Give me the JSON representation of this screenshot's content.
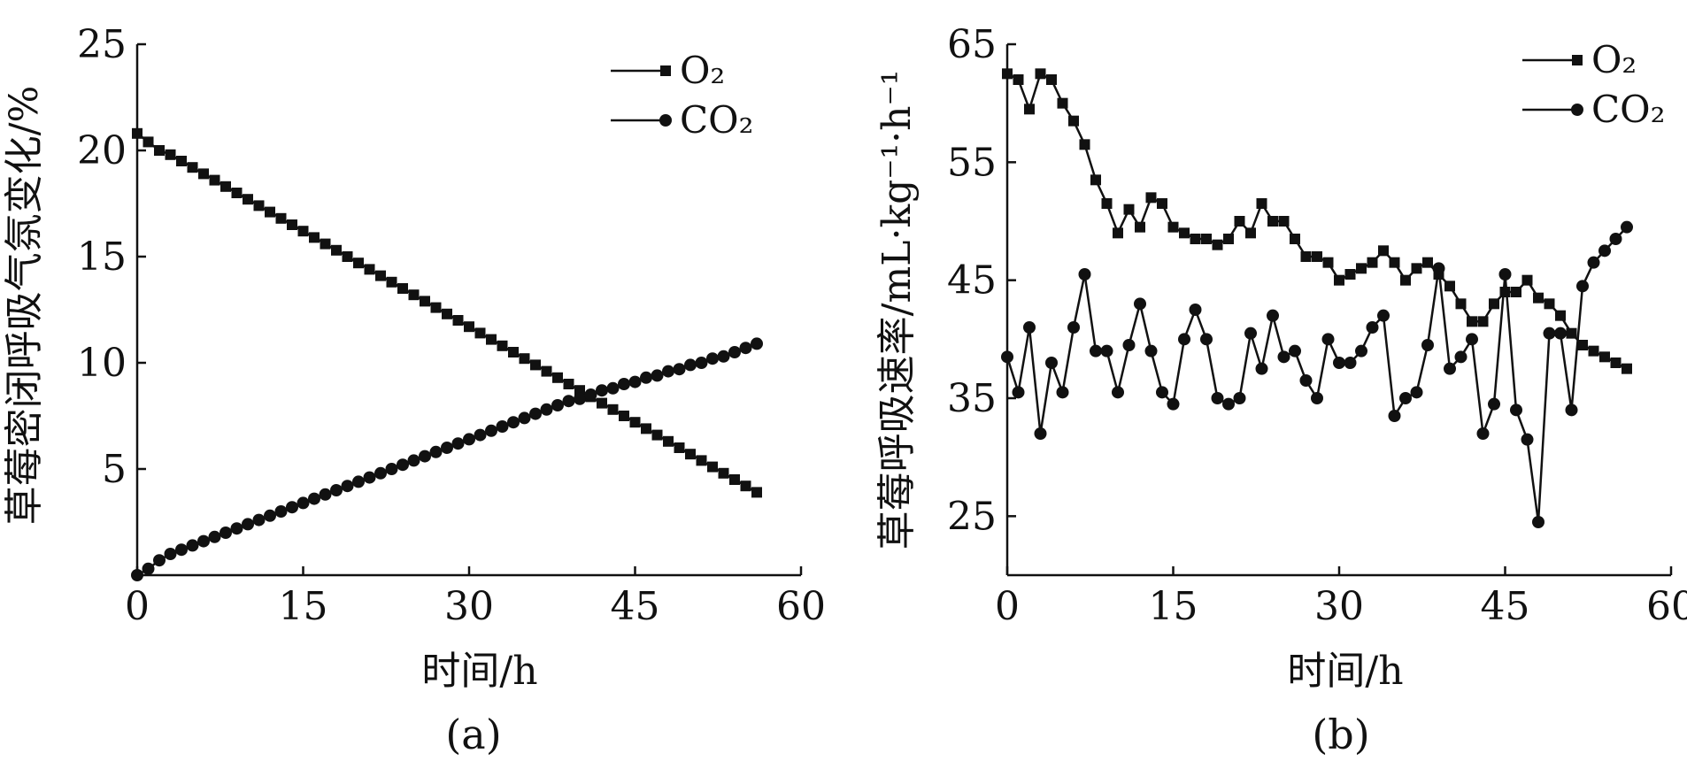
{
  "chart_data": [
    {
      "panel": "(a)",
      "type": "line",
      "title": "",
      "xlabel": "时间/h",
      "ylabel": "草莓密闭呼吸气氛变化/%",
      "xlim": [
        0,
        60
      ],
      "ylim": [
        0,
        25
      ],
      "xticks": [
        0,
        15,
        30,
        45,
        60
      ],
      "yticks": [
        5,
        10,
        15,
        20,
        25
      ],
      "legend": "top-right",
      "series": [
        {
          "name": "O₂",
          "marker": "square",
          "x": [
            0,
            1,
            2,
            3,
            4,
            5,
            6,
            7,
            8,
            9,
            10,
            11,
            12,
            13,
            14,
            15,
            16,
            17,
            18,
            19,
            20,
            21,
            22,
            23,
            24,
            25,
            26,
            27,
            28,
            29,
            30,
            31,
            32,
            33,
            34,
            35,
            36,
            37,
            38,
            39,
            40,
            41,
            42,
            43,
            44,
            45,
            46,
            47,
            48,
            49,
            50,
            51,
            52,
            53,
            54,
            55,
            56
          ],
          "y": [
            20.8,
            20.4,
            20.0,
            19.8,
            19.5,
            19.2,
            18.9,
            18.6,
            18.3,
            18.0,
            17.7,
            17.4,
            17.1,
            16.8,
            16.5,
            16.2,
            15.9,
            15.6,
            15.3,
            15.0,
            14.7,
            14.4,
            14.1,
            13.8,
            13.5,
            13.2,
            12.9,
            12.6,
            12.3,
            12.0,
            11.7,
            11.4,
            11.1,
            10.8,
            10.5,
            10.2,
            9.9,
            9.6,
            9.3,
            9.0,
            8.7,
            8.4,
            8.1,
            7.8,
            7.5,
            7.2,
            6.9,
            6.6,
            6.3,
            6.0,
            5.7,
            5.4,
            5.1,
            4.8,
            4.5,
            4.2,
            3.9
          ]
        },
        {
          "name": "CO₂",
          "marker": "circle",
          "x": [
            0,
            1,
            2,
            3,
            4,
            5,
            6,
            7,
            8,
            9,
            10,
            11,
            12,
            13,
            14,
            15,
            16,
            17,
            18,
            19,
            20,
            21,
            22,
            23,
            24,
            25,
            26,
            27,
            28,
            29,
            30,
            31,
            32,
            33,
            34,
            35,
            36,
            37,
            38,
            39,
            40,
            41,
            42,
            43,
            44,
            45,
            46,
            47,
            48,
            49,
            50,
            51,
            52,
            53,
            54,
            55,
            56
          ],
          "y": [
            0.0,
            0.3,
            0.7,
            1.0,
            1.2,
            1.4,
            1.6,
            1.8,
            2.0,
            2.2,
            2.4,
            2.6,
            2.8,
            3.0,
            3.2,
            3.4,
            3.6,
            3.8,
            4.0,
            4.2,
            4.4,
            4.6,
            4.8,
            5.0,
            5.2,
            5.4,
            5.6,
            5.8,
            6.0,
            6.2,
            6.4,
            6.6,
            6.8,
            7.0,
            7.2,
            7.4,
            7.6,
            7.8,
            8.0,
            8.2,
            8.3,
            8.5,
            8.7,
            8.8,
            9.0,
            9.1,
            9.3,
            9.4,
            9.6,
            9.7,
            9.9,
            10.0,
            10.2,
            10.3,
            10.5,
            10.7,
            10.9
          ]
        }
      ]
    },
    {
      "panel": "(b)",
      "type": "line",
      "title": "",
      "xlabel": "时间/h",
      "ylabel": "草莓呼吸速率/mL·kg⁻¹·h⁻¹",
      "xlim": [
        0,
        60
      ],
      "ylim": [
        20,
        65
      ],
      "xticks": [
        0,
        15,
        30,
        45,
        60
      ],
      "yticks": [
        25,
        35,
        45,
        55,
        65
      ],
      "legend": "top-right",
      "series": [
        {
          "name": "O₂",
          "marker": "square",
          "x": [
            0,
            1,
            2,
            3,
            4,
            5,
            6,
            7,
            8,
            9,
            10,
            11,
            12,
            13,
            14,
            15,
            16,
            17,
            18,
            19,
            20,
            21,
            22,
            23,
            24,
            25,
            26,
            27,
            28,
            29,
            30,
            31,
            32,
            33,
            34,
            35,
            36,
            37,
            38,
            39,
            40,
            41,
            42,
            43,
            44,
            45,
            46,
            47,
            48,
            49,
            50,
            51,
            52,
            53,
            54,
            55,
            56
          ],
          "y": [
            62.5,
            62.0,
            59.5,
            62.5,
            62.0,
            60.0,
            58.5,
            56.5,
            53.5,
            51.5,
            49.0,
            51.0,
            49.5,
            52.0,
            51.5,
            49.5,
            49.0,
            48.5,
            48.5,
            48.0,
            48.5,
            50.0,
            49.0,
            51.5,
            50.0,
            50.0,
            48.5,
            47.0,
            47.0,
            46.5,
            45.0,
            45.5,
            46.0,
            46.5,
            47.5,
            46.5,
            45.0,
            46.0,
            46.5,
            45.5,
            44.5,
            43.0,
            41.5,
            41.5,
            43.0,
            44.0,
            44.0,
            45.0,
            43.5,
            43.0,
            42.0,
            40.5,
            39.5,
            39.0,
            38.5,
            38.0,
            37.5
          ]
        },
        {
          "name": "CO₂",
          "marker": "circle",
          "x": [
            0,
            1,
            2,
            3,
            4,
            5,
            6,
            7,
            8,
            9,
            10,
            11,
            12,
            13,
            14,
            15,
            16,
            17,
            18,
            19,
            20,
            21,
            22,
            23,
            24,
            25,
            26,
            27,
            28,
            29,
            30,
            31,
            32,
            33,
            34,
            35,
            36,
            37,
            38,
            39,
            40,
            41,
            42,
            43,
            44,
            45,
            46,
            47,
            48,
            49,
            50,
            51,
            52,
            53,
            54,
            55,
            56
          ],
          "y": [
            38.5,
            35.5,
            41.0,
            32.0,
            38.0,
            35.5,
            41.0,
            45.5,
            39.0,
            39.0,
            35.5,
            39.5,
            43.0,
            39.0,
            35.5,
            34.5,
            40.0,
            42.5,
            40.0,
            35.0,
            34.5,
            35.0,
            40.5,
            37.5,
            42.0,
            38.5,
            39.0,
            36.5,
            35.0,
            40.0,
            38.0,
            38.0,
            39.0,
            41.0,
            42.0,
            33.5,
            35.0,
            35.5,
            39.5,
            46.0,
            37.5,
            38.5,
            40.0,
            32.0,
            34.5,
            45.5,
            34.0,
            31.5,
            24.5,
            40.5,
            40.5,
            34.0,
            44.5,
            46.5,
            47.5,
            48.5,
            49.5
          ]
        }
      ]
    }
  ]
}
